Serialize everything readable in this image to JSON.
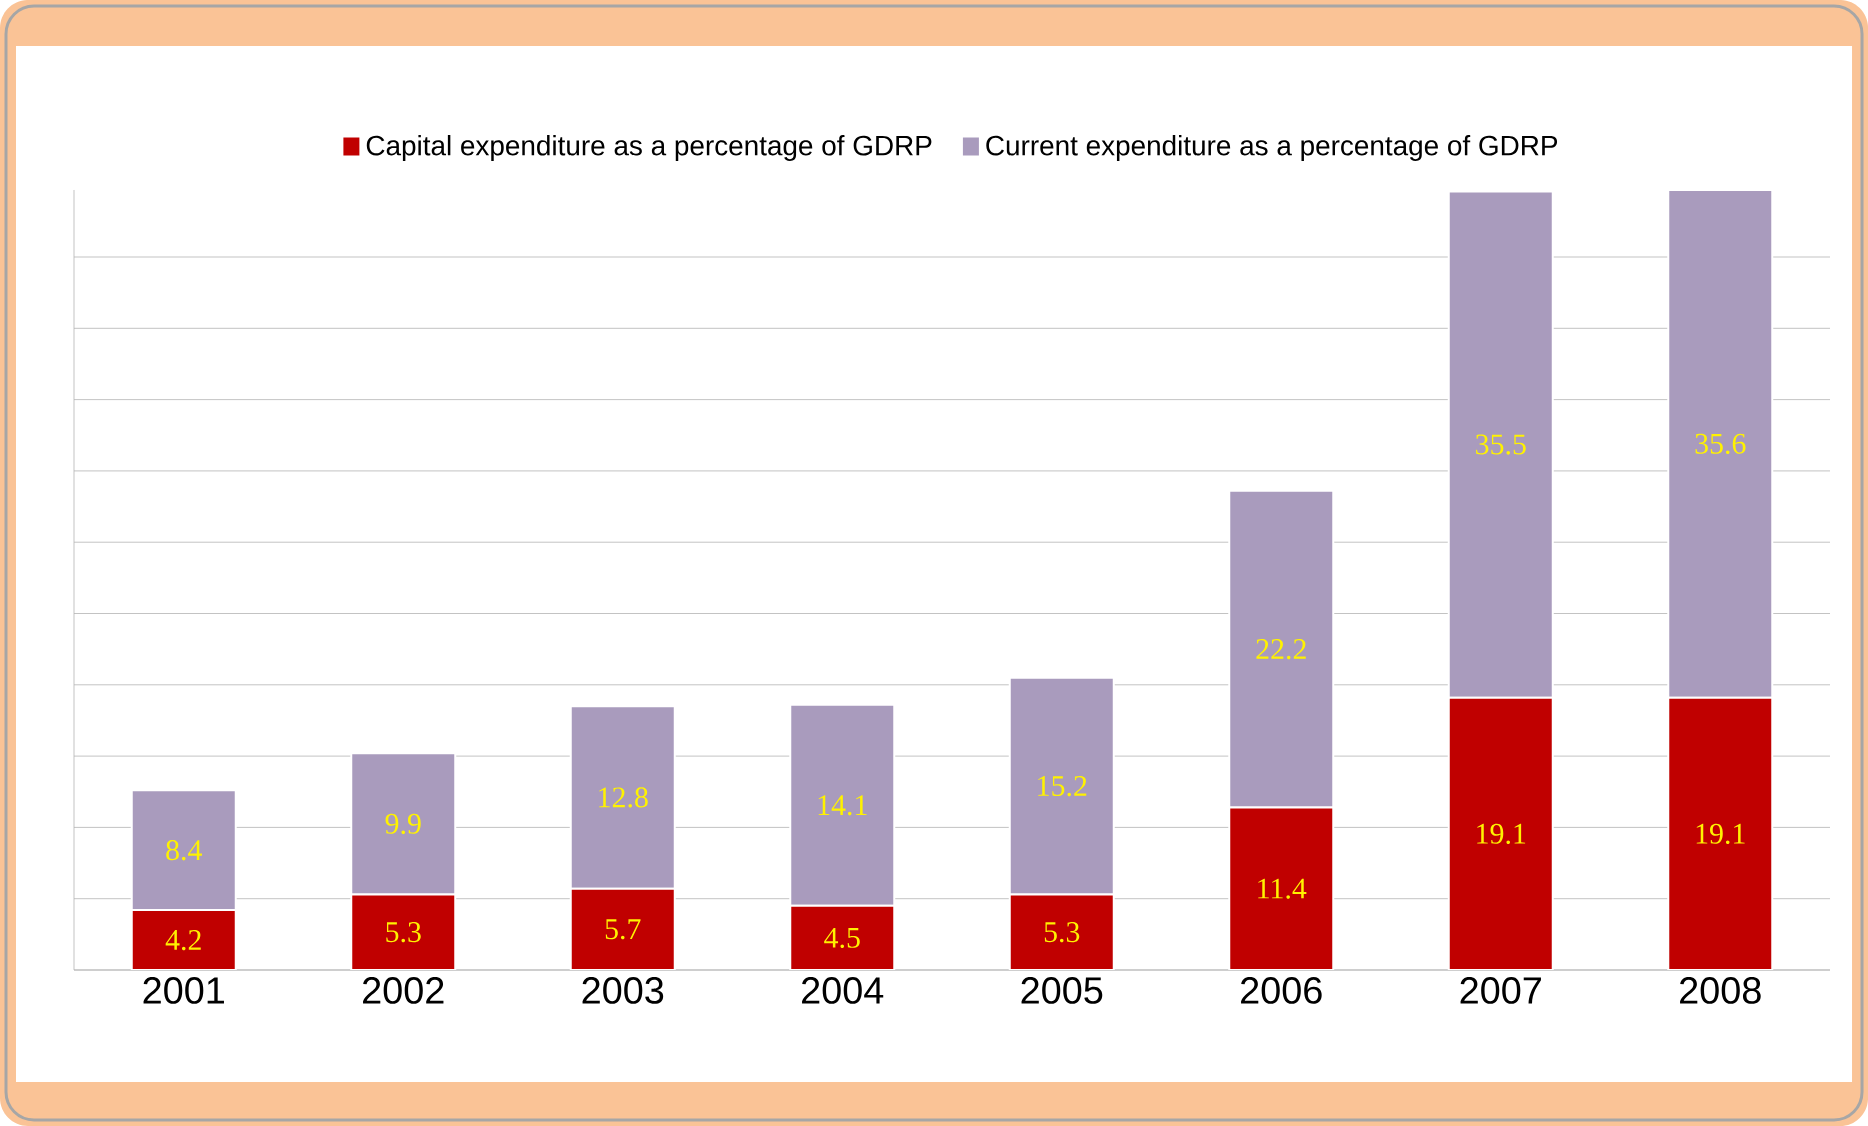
{
  "chart_data": {
    "type": "bar",
    "stacked": true,
    "data_labels": true,
    "grid": "y",
    "legend": "top",
    "tick_labels": "x",
    "categories": [
      "2001",
      "2002",
      "2003",
      "2004",
      "2005",
      "2006",
      "2007",
      "2008"
    ],
    "series": [
      {
        "name": "Capital expenditure as a percentage of GDRP",
        "color": "#c00000",
        "values": [
          4.2,
          5.3,
          5.7,
          4.5,
          5.3,
          11.4,
          19.1,
          19.1
        ]
      },
      {
        "name": "Current expenditure as a percentage of GDRP",
        "color": "#a99bbd",
        "values": [
          8.4,
          9.9,
          12.8,
          14.1,
          15.2,
          22.2,
          35.5,
          35.6
        ]
      }
    ]
  }
}
